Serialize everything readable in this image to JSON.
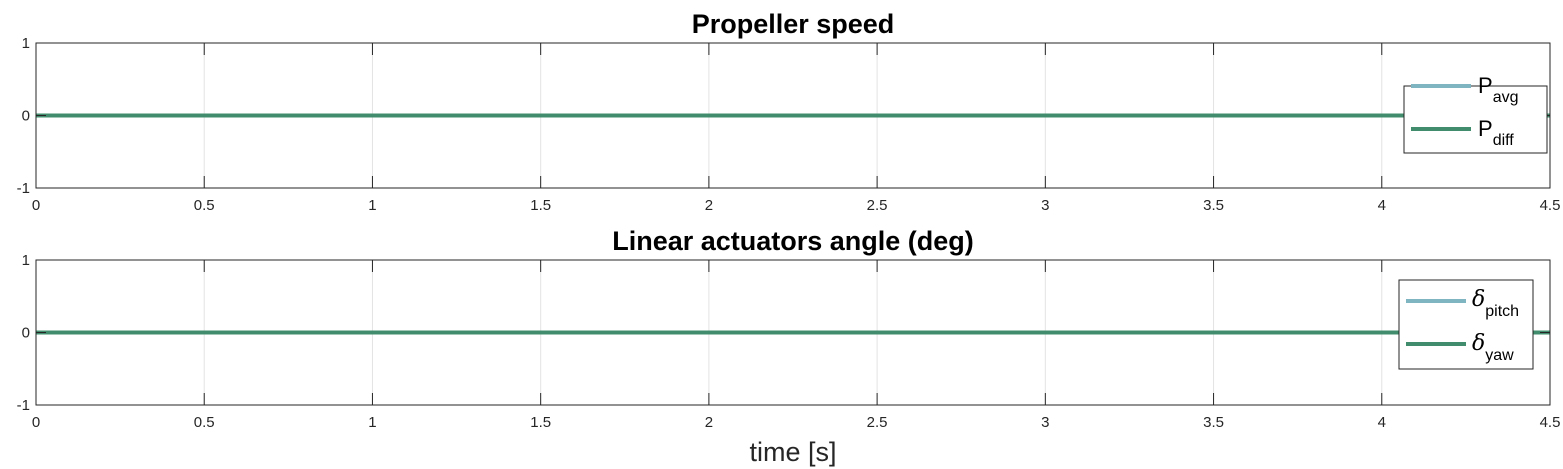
{
  "chart_data": [
    {
      "type": "line",
      "title": "Propeller speed",
      "xlabel": "",
      "ylabel": "",
      "xlim": [
        0,
        4.5
      ],
      "ylim": [
        -1,
        1
      ],
      "xticks": [
        "0",
        "0.5",
        "1",
        "1.5",
        "2",
        "2.5",
        "3",
        "3.5",
        "4",
        "4.5"
      ],
      "yticks": [
        "-1",
        "0",
        "1"
      ],
      "grid": true,
      "legend_position": "right",
      "series": [
        {
          "name": "P",
          "subscript": "avg",
          "color": "#7fb5c0",
          "x": [
            0,
            4.5
          ],
          "y": [
            0,
            0
          ]
        },
        {
          "name": "P",
          "subscript": "diff",
          "color": "#408c6c",
          "x": [
            0,
            4.5
          ],
          "y": [
            0,
            0
          ]
        }
      ]
    },
    {
      "type": "line",
      "title": "Linear actuators angle (deg)",
      "xlabel": "time [s]",
      "ylabel": "",
      "xlim": [
        0,
        4.5
      ],
      "ylim": [
        -1,
        1
      ],
      "xticks": [
        "0",
        "0.5",
        "1",
        "1.5",
        "2",
        "2.5",
        "3",
        "3.5",
        "4",
        "4.5"
      ],
      "yticks": [
        "-1",
        "0",
        "1"
      ],
      "grid": true,
      "legend_position": "right",
      "series": [
        {
          "name": "δ",
          "subscript": "pitch",
          "color": "#7fb5c0",
          "x": [
            0,
            4.5
          ],
          "y": [
            0,
            0
          ]
        },
        {
          "name": "δ",
          "subscript": "yaw",
          "color": "#408c6c",
          "x": [
            0,
            4.5
          ],
          "y": [
            0,
            0
          ]
        }
      ]
    }
  ]
}
